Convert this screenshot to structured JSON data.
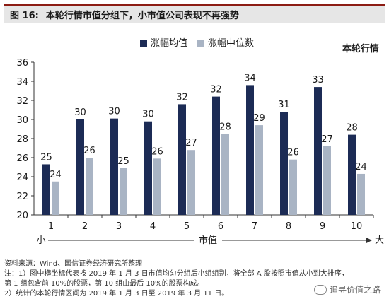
{
  "figure": {
    "number": "图 16:",
    "title": "本轮行情市值分组下，小市值公司表现不再强势",
    "panel_label": "本轮行情"
  },
  "chart_data": {
    "type": "bar",
    "categories": [
      "1",
      "2",
      "3",
      "4",
      "5",
      "6",
      "7",
      "8",
      "9",
      "10"
    ],
    "series": [
      {
        "name": "涨幅均值",
        "values": [
          25,
          30,
          30,
          30,
          32,
          32,
          34,
          31,
          33,
          28
        ],
        "color": "#1c2b55"
      },
      {
        "name": "涨幅中位数",
        "values": [
          24,
          26,
          25,
          26,
          27,
          28,
          29,
          26,
          27,
          24
        ],
        "color": "#a9b4c4"
      }
    ],
    "actual_heights": {
      "mean": [
        25.3,
        30.0,
        30.1,
        29.8,
        31.6,
        32.4,
        33.6,
        30.8,
        33.4,
        28.4
      ],
      "median": [
        23.5,
        26.0,
        24.9,
        25.9,
        26.8,
        28.5,
        29.4,
        25.8,
        27.2,
        24.3
      ]
    },
    "ylim": [
      20,
      36
    ],
    "yticks": [
      "20",
      "22",
      "24",
      "26",
      "28",
      "30",
      "32",
      "34",
      "36"
    ],
    "x_annotations": {
      "left": "小",
      "center": "市值",
      "right": "大"
    },
    "legend_position": "top-center",
    "grid": false
  },
  "footer": {
    "source": "资料来源：Wind、国信证券经济研究所整理",
    "note1": "注：1）图中横坐标代表按 2019 年 1 月 3 日市值均匀分组后小组组别，将全部 A 股按照市值从小到大排序，",
    "note2": "第 1 组包含前 10%的股票，第 10 组由最后 10%的股票构成。",
    "note3": "2）统计的本轮行情区间为 2019 年 1 月 3 日至 2019 年 3 月 11 日。"
  },
  "watermark": {
    "text": "追寻价值之路",
    "icon": "wechat-icon"
  }
}
